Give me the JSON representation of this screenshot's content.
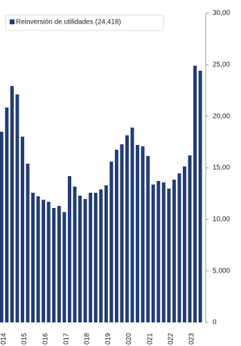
{
  "chart_data": {
    "type": "bar",
    "legend_label": "Reinversión de utilidades (24,418)",
    "categories": [
      "014",
      null,
      null,
      null,
      "015",
      null,
      null,
      null,
      "016",
      null,
      null,
      null,
      "017",
      null,
      null,
      null,
      "018",
      null,
      null,
      null,
      "019",
      null,
      null,
      null,
      "020",
      null,
      null,
      null,
      "021",
      null,
      null,
      null,
      "022",
      null,
      null,
      null,
      "023",
      null,
      null
    ],
    "values": [
      18500,
      20850,
      22930,
      22120,
      18020,
      15400,
      12580,
      12240,
      11900,
      11700,
      11100,
      11300,
      10700,
      14190,
      13180,
      12300,
      11970,
      12580,
      12580,
      12900,
      13300,
      15600,
      16750,
      17280,
      18150,
      18900,
      17220,
      17080,
      16140,
      13380,
      13720,
      13580,
      12980,
      13850,
      14460,
      15130,
      16200,
      24900,
      24418
    ],
    "color": "#213d73",
    "ylim": [
      0,
      30000
    ],
    "yticks": [
      0,
      {
        "value": 5000,
        "label": "5,000"
      },
      {
        "value": 10000,
        "label": "10,00"
      },
      {
        "value": 15000,
        "label": "15,00"
      },
      {
        "value": 20000,
        "label": "20,00"
      },
      {
        "value": 25000,
        "label": "25,00"
      },
      {
        "value": 30000,
        "label": "30,00"
      }
    ],
    "y_axis_side": "right"
  }
}
